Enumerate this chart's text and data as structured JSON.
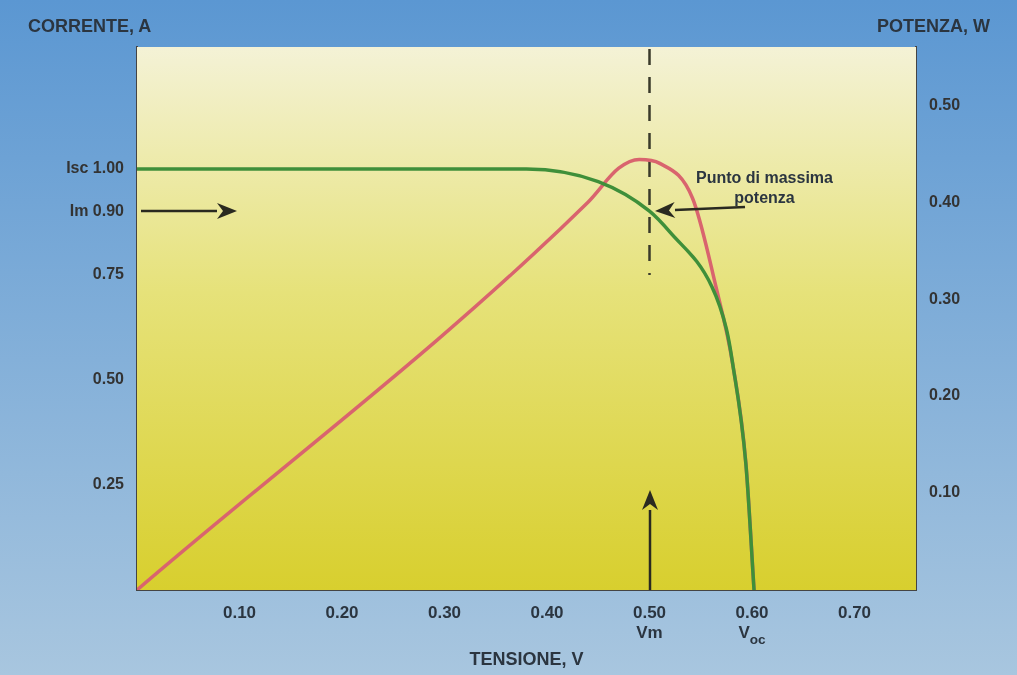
{
  "chart_data": {
    "type": "line",
    "xlabel": "TENSIONE, V",
    "ylabel": "CORRENTE, A",
    "y2label": "POTENZA, W",
    "xlim": [
      0,
      0.76
    ],
    "xticks": [
      {
        "value": 0.1,
        "label": "0.10"
      },
      {
        "value": 0.2,
        "label": "0.20"
      },
      {
        "value": 0.3,
        "label": "0.30"
      },
      {
        "value": 0.4,
        "label": "0.40"
      },
      {
        "value": 0.5,
        "label": "0.50\nVm"
      },
      {
        "value": 0.6,
        "label": "0.60\nV$_{oc}$"
      },
      {
        "value": 0.7,
        "label": "0.70"
      }
    ],
    "ylim": [
      0,
      1.29
    ],
    "yticks": [
      {
        "value": 0.25,
        "label": "0.25"
      },
      {
        "value": 0.5,
        "label": "0.50"
      },
      {
        "value": 0.75,
        "label": "0.75"
      },
      {
        "value": 0.9,
        "label": "Im 0.90"
      },
      {
        "value": 1.0,
        "label": "Isc 1.00"
      }
    ],
    "y2lim": [
      0,
      0.56
    ],
    "y2ticks": [
      {
        "value": 0.1,
        "label": "0.10"
      },
      {
        "value": 0.2,
        "label": "0.20"
      },
      {
        "value": 0.3,
        "label": "0.30"
      },
      {
        "value": 0.4,
        "label": "0.40"
      },
      {
        "value": 0.5,
        "label": "0.50"
      }
    ],
    "series": [
      {
        "color": "#3f8f3a",
        "x": [
          0,
          0.38,
          0.45,
          0.5,
          0.52,
          0.561,
          0.575,
          0.581,
          0.594,
          0.602
        ],
        "values": [
          1.0,
          1.0,
          0.97,
          0.9,
          0.85,
          0.72,
          0.62,
          0.54,
          0.3,
          0
        ]
      },
      {
        "color": "#d9646e",
        "axis": "y2",
        "x": [
          0,
          0.44,
          0.47,
          0.49,
          0.51,
          0.542,
          0.565,
          0.581,
          0.594,
          0.602
        ],
        "values": [
          0,
          0.4,
          0.435,
          0.444,
          0.44,
          0.404,
          0.312,
          0.234,
          0.131,
          0
        ]
      }
    ],
    "ref_lines": [
      {
        "axis": "x",
        "value": 0.5,
        "line_style": "dashed",
        "color": "#3a3a2a"
      }
    ],
    "annotations": [
      {
        "text": "Punto di massima potenza",
        "x": 0.5,
        "y": 0.9
      }
    ],
    "legend": false
  }
}
